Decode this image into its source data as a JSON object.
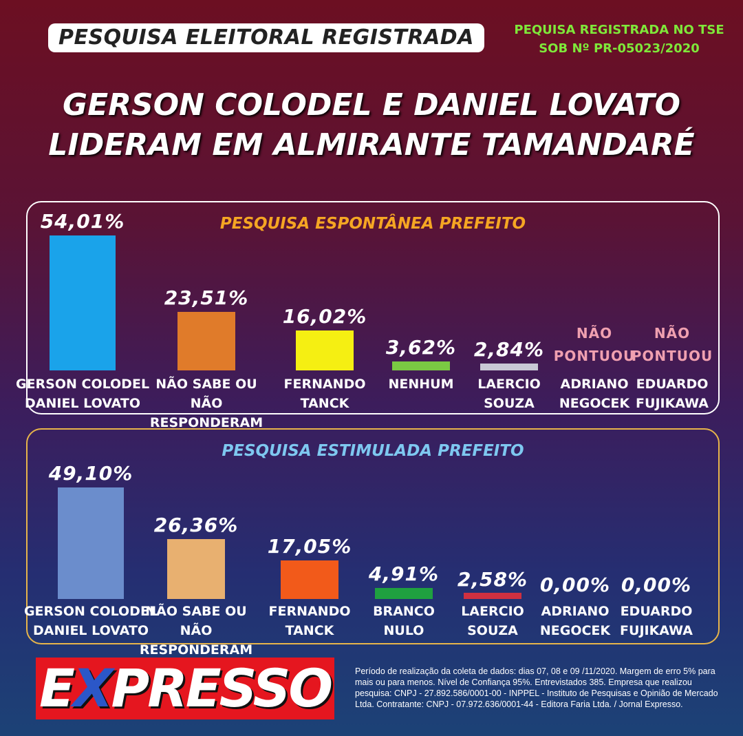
{
  "header": {
    "badge": "PESQUISA ELEITORAL REGISTRADA",
    "registration": "PEQUISA REGISTRADA NO TSE\nSOB Nº PR-05023/2020",
    "headline": "GERSON COLODEL E DANIEL LOVATO\nLIDERAM EM ALMIRANTE TAMANDARÉ"
  },
  "chart_data": [
    {
      "type": "bar",
      "title": "PESQUISA ESPONTÂNEA PREFEITO",
      "categories": [
        "GERSON COLODEL\nDANIEL LOVATO",
        "NÃO SABE OU\nNÃO RESPONDERAM",
        "FERNANDO\nTANCK",
        "NENHUM",
        "LAERCIO\nSOUZA",
        "ADRIANO\nNEGOCEK",
        "EDUARDO\nFUJIKAWA"
      ],
      "values": [
        54.01,
        23.51,
        16.02,
        3.62,
        2.84,
        0,
        0
      ],
      "value_labels": [
        "54,01%",
        "23,51%",
        "16,02%",
        "3,62%",
        "2,84%",
        "NÃO\nPONTUOU",
        "NÃO\nPONTUOU"
      ],
      "colors": [
        "#1aa3ea",
        "#e07b2a",
        "#f5ef12",
        "#7ac943",
        "#c9c9d6",
        "#f0a0b0",
        "#f0a0b0"
      ]
    },
    {
      "type": "bar",
      "title": "PESQUISA ESTIMULADA PREFEITO",
      "categories": [
        "GERSON COLODEL\nDANIEL LOVATO",
        "NÃO SABE OU\nNÃO RESPONDERAM",
        "FERNANDO\nTANCK",
        "BRANCO\nNULO",
        "LAERCIO\nSOUZA",
        "ADRIANO\nNEGOCEK",
        "EDUARDO\nFUJIKAWA"
      ],
      "values": [
        49.1,
        26.36,
        17.05,
        4.91,
        2.58,
        0.0,
        0.0
      ],
      "value_labels": [
        "49,10%",
        "26,36%",
        "17,05%",
        "4,91%",
        "2,58%",
        "0,00%",
        "0,00%"
      ],
      "colors": [
        "#6b8dcc",
        "#e8b070",
        "#f25a1a",
        "#1fa040",
        "#d03040",
        "#ffffff",
        "#ffffff"
      ]
    }
  ],
  "footer": {
    "logo": [
      "E",
      "X",
      "PRESSO"
    ],
    "note": "Período de realização da coleta de dados: dias 07, 08 e 09 /11/2020. Margem de erro 5% para mais ou para menos. Nível de Confiança 95%. Entrevistados 385. Empresa que realizou pesquisa: CNPJ - 27.892.586/0001-00 - INPPEL - Instituto de Pesquisas e Opinião de Mercado Ltda. Contratante: CNPJ - 07.972.636/0001-44 - Editora Faria Ltda. / Jornal Expresso."
  }
}
